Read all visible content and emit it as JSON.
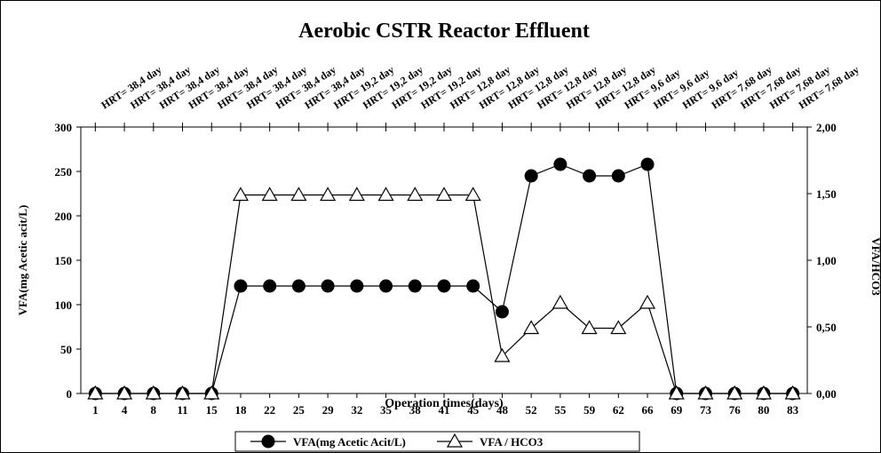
{
  "chart_data": {
    "type": "line",
    "title": "Aerobic CSTR Reactor Effluent",
    "x_label": "Operation times(days)",
    "y_label": "VFA(mg Acetic acit/L)",
    "y2_label": "VFA/HCO3",
    "categories": [
      "1",
      "4",
      "8",
      "11",
      "15",
      "18",
      "22",
      "25",
      "29",
      "32",
      "35",
      "38",
      "41",
      "45",
      "48",
      "52",
      "55",
      "59",
      "62",
      "66",
      "69",
      "73",
      "76",
      "80",
      "83"
    ],
    "top_labels": [
      "HRT= 38,4 day",
      "HRT= 38,4 day",
      "HRT= 38,4 day",
      "HRT= 38,4 day",
      "HRT= 38,4 day",
      "HRT= 38,4 day",
      "HRT= 38,4 day",
      "HRT= 38,4 day",
      "HRT= 19,2 day",
      "HRT= 19,2 day",
      "HRT= 19,2 day",
      "HRT= 19,2 day",
      "HRT= 12,8 day",
      "HRT= 12,8 day",
      "HRT= 12,8 day",
      "HRT= 12,8 day",
      "HRT= 12,8 day",
      "HRT= 12,8 day",
      "HRT= 9,6 day",
      "HRT= 9,6 day",
      "HRT= 9,6 day",
      "HRT= 7,68 day",
      "HRT= 7,68 day",
      "HRT= 7,68 day",
      "HRT= 7,68 day"
    ],
    "series": [
      {
        "name": "VFA(mg Acetic Acit/L)",
        "color": "#000000",
        "marker": "circle",
        "values": [
          0,
          0,
          0,
          0,
          0,
          121,
          121,
          121,
          121,
          121,
          121,
          121,
          121,
          121,
          92,
          245,
          258,
          245,
          245,
          258,
          0,
          0,
          0,
          0,
          0
        ]
      },
      {
        "name": "VFA / HCO3",
        "color": "#000000",
        "marker": "triangle",
        "axis": "y2",
        "values": [
          0,
          0,
          0,
          0,
          0,
          1.49,
          1.49,
          1.49,
          1.49,
          1.49,
          1.49,
          1.49,
          1.49,
          1.49,
          0.28,
          0.49,
          0.68,
          0.49,
          0.49,
          0.68,
          0,
          0,
          0,
          0,
          0
        ]
      }
    ],
    "ylim": [
      0,
      300
    ],
    "yticks": [
      0,
      50,
      100,
      150,
      200,
      250,
      300
    ],
    "y2lim": [
      0,
      2
    ],
    "y2ticks": [
      {
        "value": 0,
        "label": "0,00"
      },
      {
        "value": 0.5,
        "label": "0,50"
      },
      {
        "value": 1,
        "label": "1,00"
      },
      {
        "value": 1.5,
        "label": "1,50"
      },
      {
        "value": 2,
        "label": "2,00"
      }
    ],
    "legend": "bottom"
  }
}
